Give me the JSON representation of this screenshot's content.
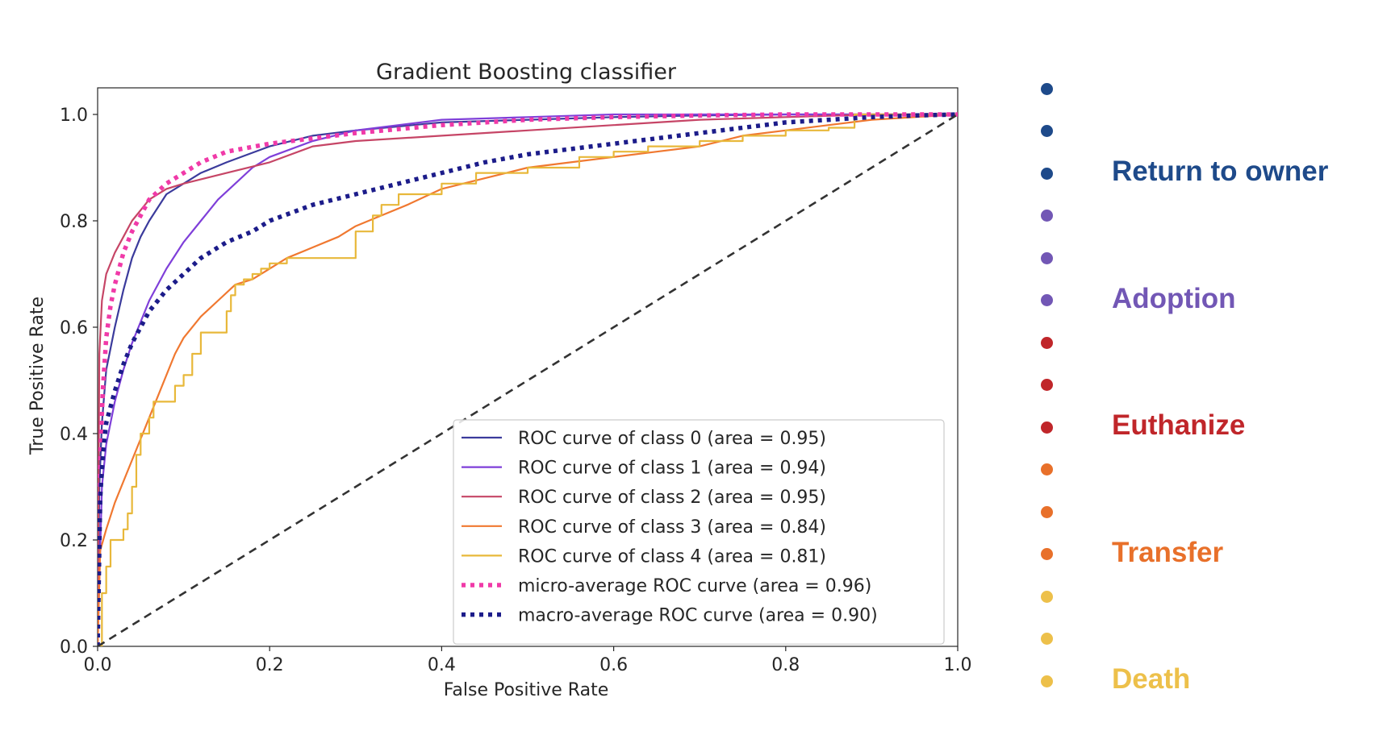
{
  "chart_data": {
    "type": "line",
    "title": "Gradient Boosting classifier",
    "xlabel": "False Positive Rate",
    "ylabel": "True Positive Rate",
    "xlim": [
      0.0,
      1.0
    ],
    "ylim": [
      0.0,
      1.05
    ],
    "xticks": [
      "0.0",
      "0.2",
      "0.4",
      "0.6",
      "0.8",
      "1.0"
    ],
    "yticks": [
      "0.0",
      "0.2",
      "0.4",
      "0.6",
      "0.8",
      "1.0"
    ],
    "grid": false,
    "legend_position": "lower-right",
    "series": [
      {
        "name": "ROC curve of class 0 (area = 0.95)",
        "color": "#3b3b9c",
        "style": "solid",
        "x": [
          0,
          0.002,
          0.005,
          0.01,
          0.02,
          0.03,
          0.04,
          0.05,
          0.06,
          0.08,
          0.1,
          0.12,
          0.15,
          0.2,
          0.25,
          0.3,
          0.4,
          0.5,
          0.6,
          0.7,
          0.8,
          0.9,
          1.0
        ],
        "y": [
          0,
          0.3,
          0.42,
          0.52,
          0.6,
          0.67,
          0.73,
          0.77,
          0.8,
          0.85,
          0.87,
          0.89,
          0.91,
          0.94,
          0.96,
          0.97,
          0.985,
          0.99,
          0.995,
          0.998,
          1.0,
          1.0,
          1.0
        ]
      },
      {
        "name": "ROC curve of class 1 (area = 0.94)",
        "color": "#7f3fd9",
        "style": "solid",
        "x": [
          0,
          0.005,
          0.01,
          0.02,
          0.03,
          0.04,
          0.05,
          0.06,
          0.08,
          0.1,
          0.12,
          0.14,
          0.16,
          0.18,
          0.2,
          0.25,
          0.3,
          0.4,
          0.5,
          0.6,
          0.7,
          0.8,
          0.9,
          1.0
        ],
        "y": [
          0,
          0.3,
          0.38,
          0.46,
          0.52,
          0.57,
          0.61,
          0.65,
          0.71,
          0.76,
          0.8,
          0.84,
          0.87,
          0.9,
          0.92,
          0.95,
          0.97,
          0.99,
          0.995,
          1.0,
          1.0,
          1.0,
          1.0,
          1.0
        ]
      },
      {
        "name": "ROC curve of class 2 (area = 0.95)",
        "color": "#c64566",
        "style": "solid",
        "x": [
          0,
          0.002,
          0.005,
          0.01,
          0.02,
          0.03,
          0.04,
          0.05,
          0.06,
          0.08,
          0.1,
          0.15,
          0.2,
          0.25,
          0.3,
          0.4,
          0.5,
          0.6,
          0.7,
          0.8,
          0.9,
          1.0
        ],
        "y": [
          0,
          0.55,
          0.65,
          0.7,
          0.74,
          0.77,
          0.8,
          0.82,
          0.84,
          0.86,
          0.87,
          0.89,
          0.91,
          0.94,
          0.95,
          0.96,
          0.97,
          0.98,
          0.99,
          0.995,
          1.0,
          1.0
        ]
      },
      {
        "name": "ROC curve of class 3 (area = 0.84)",
        "color": "#f07830",
        "style": "solid",
        "x": [
          0,
          0.003,
          0.01,
          0.02,
          0.03,
          0.04,
          0.05,
          0.06,
          0.07,
          0.08,
          0.09,
          0.1,
          0.12,
          0.14,
          0.16,
          0.18,
          0.2,
          0.22,
          0.25,
          0.28,
          0.3,
          0.33,
          0.36,
          0.4,
          0.45,
          0.5,
          0.55,
          0.6,
          0.65,
          0.7,
          0.75,
          0.8,
          0.85,
          0.9,
          0.95,
          1.0
        ],
        "y": [
          0,
          0.18,
          0.22,
          0.27,
          0.31,
          0.35,
          0.39,
          0.43,
          0.47,
          0.51,
          0.55,
          0.58,
          0.62,
          0.65,
          0.68,
          0.69,
          0.71,
          0.73,
          0.75,
          0.77,
          0.79,
          0.81,
          0.83,
          0.86,
          0.88,
          0.9,
          0.91,
          0.92,
          0.93,
          0.94,
          0.96,
          0.97,
          0.98,
          0.99,
          0.995,
          1.0
        ]
      },
      {
        "name": "ROC curve of class 4 (area = 0.81)",
        "color": "#e8b83a",
        "style": "step",
        "x": [
          0,
          0.005,
          0.01,
          0.015,
          0.02,
          0.03,
          0.035,
          0.04,
          0.045,
          0.05,
          0.06,
          0.065,
          0.09,
          0.1,
          0.11,
          0.12,
          0.15,
          0.155,
          0.16,
          0.17,
          0.18,
          0.19,
          0.2,
          0.22,
          0.25,
          0.3,
          0.3,
          0.32,
          0.32,
          0.33,
          0.35,
          0.4,
          0.44,
          0.5,
          0.56,
          0.6,
          0.64,
          0.7,
          0.75,
          0.8,
          0.85,
          0.88,
          0.88,
          1.0
        ],
        "y": [
          0,
          0.1,
          0.15,
          0.2,
          0.2,
          0.22,
          0.25,
          0.3,
          0.36,
          0.4,
          0.43,
          0.46,
          0.49,
          0.51,
          0.55,
          0.59,
          0.63,
          0.66,
          0.68,
          0.69,
          0.7,
          0.71,
          0.72,
          0.73,
          0.73,
          0.77,
          0.78,
          0.8,
          0.81,
          0.83,
          0.85,
          0.87,
          0.89,
          0.9,
          0.92,
          0.93,
          0.94,
          0.95,
          0.96,
          0.97,
          0.975,
          0.98,
          1.0,
          1.0
        ]
      },
      {
        "name": "micro-average ROC curve (area = 0.96)",
        "color": "#f03aa8",
        "style": "dotted",
        "x": [
          0,
          0.003,
          0.006,
          0.01,
          0.015,
          0.02,
          0.03,
          0.04,
          0.05,
          0.06,
          0.08,
          0.1,
          0.12,
          0.15,
          0.2,
          0.25,
          0.3,
          0.4,
          0.5,
          0.6,
          0.7,
          0.8,
          0.9,
          1.0
        ],
        "y": [
          0,
          0.35,
          0.48,
          0.58,
          0.64,
          0.68,
          0.74,
          0.78,
          0.81,
          0.84,
          0.87,
          0.89,
          0.91,
          0.93,
          0.945,
          0.955,
          0.965,
          0.98,
          0.99,
          0.995,
          0.998,
          1.0,
          1.0,
          1.0
        ]
      },
      {
        "name": "macro-average ROC curve (area = 0.90)",
        "color": "#1c1c8a",
        "style": "dotted",
        "x": [
          0,
          0.003,
          0.006,
          0.01,
          0.02,
          0.03,
          0.04,
          0.05,
          0.06,
          0.08,
          0.1,
          0.12,
          0.15,
          0.18,
          0.2,
          0.25,
          0.3,
          0.35,
          0.4,
          0.45,
          0.5,
          0.55,
          0.6,
          0.65,
          0.7,
          0.75,
          0.8,
          0.85,
          0.9,
          0.95,
          1.0
        ],
        "y": [
          0,
          0.28,
          0.36,
          0.42,
          0.48,
          0.53,
          0.57,
          0.6,
          0.63,
          0.67,
          0.7,
          0.73,
          0.76,
          0.78,
          0.8,
          0.83,
          0.85,
          0.87,
          0.89,
          0.91,
          0.925,
          0.935,
          0.945,
          0.955,
          0.965,
          0.975,
          0.985,
          0.99,
          0.995,
          0.998,
          1.0
        ]
      },
      {
        "color": "#333333",
        "style": "dashed",
        "x": [
          0,
          1
        ],
        "y": [
          0,
          1
        ]
      }
    ]
  },
  "annotations": {
    "dots": [
      {
        "color": "#1e4a8a"
      },
      {
        "color": "#1e4a8a"
      },
      {
        "color": "#1e4a8a"
      },
      {
        "color": "#7257b5"
      },
      {
        "color": "#7257b5"
      },
      {
        "color": "#7257b5"
      },
      {
        "color": "#c0262a"
      },
      {
        "color": "#c0262a"
      },
      {
        "color": "#c0262a"
      },
      {
        "color": "#e8702a"
      },
      {
        "color": "#e8702a"
      },
      {
        "color": "#e8702a"
      },
      {
        "color": "#edc04a"
      },
      {
        "color": "#edc04a"
      },
      {
        "color": "#edc04a"
      }
    ],
    "labels": [
      {
        "text": "Return to owner",
        "color": "#1e4a8a"
      },
      {
        "text": "Adoption",
        "color": "#7257b5"
      },
      {
        "text": "Euthanize",
        "color": "#c0262a"
      },
      {
        "text": "Transfer",
        "color": "#e8702a"
      },
      {
        "text": "Death",
        "color": "#edc04a"
      }
    ]
  }
}
